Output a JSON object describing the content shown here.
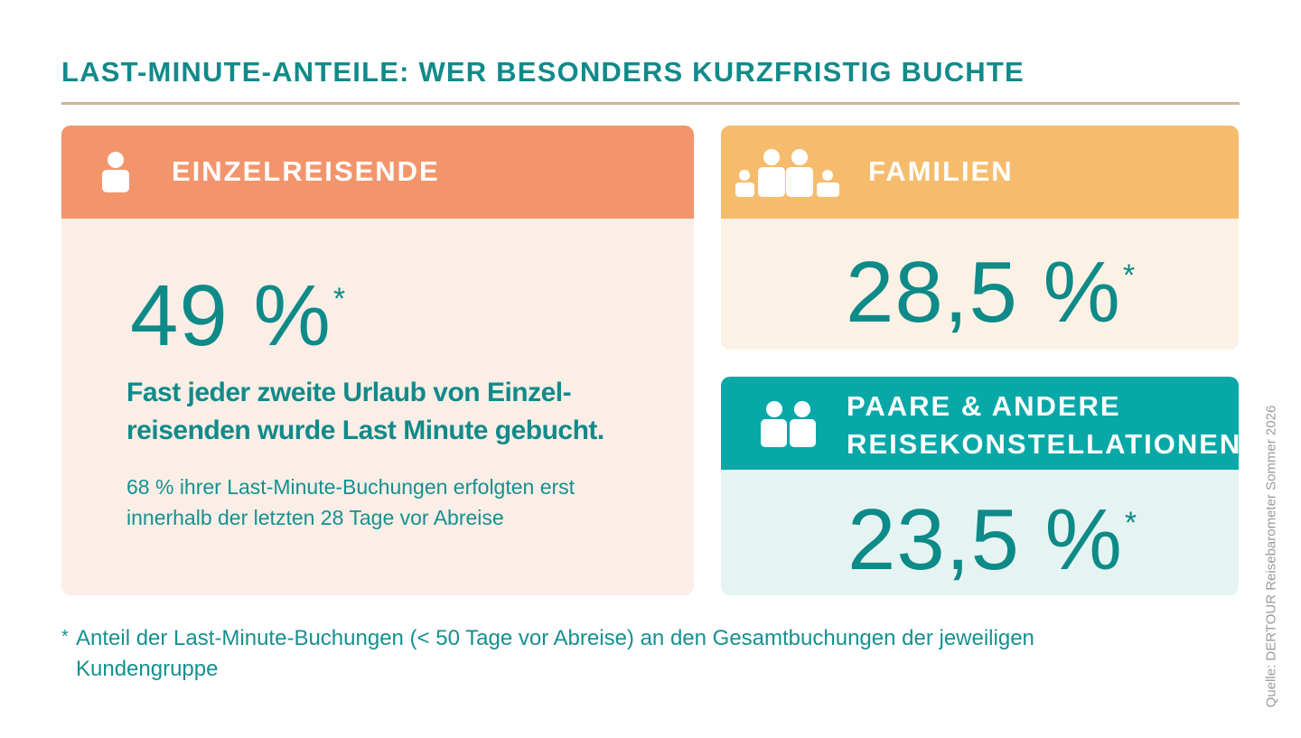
{
  "title": "LAST-MINUTE-ANTEILE: WER BESONDERS KURZFRISTIG BUCHTE",
  "cards": {
    "single": {
      "label": "EINZELREISENDE",
      "icon": "person-icon",
      "value": "49 %",
      "asterisk": "*",
      "headline": "Fast jeder zweite Urlaub von Einzel-reisenden wurde Last Minute gebucht.",
      "subtext": "68 % ihrer Last-Minute-Buchungen erfolgten erst innerhalb der letzten 28 Tage vor Abreise",
      "header_color": "#f2956c",
      "body_color": "#faeee6"
    },
    "family": {
      "label": "FAMILIEN",
      "icon": "family-icon",
      "value": "28,5 %",
      "asterisk": "*",
      "header_color": "#f6bc6e",
      "body_color": "#fcf1e5"
    },
    "couples": {
      "label": "PAARE & ANDERE REISEKONSTELLATIONEN",
      "icon": "couple-icon",
      "value": "23,5 %",
      "asterisk": "*",
      "header_color": "#07a8a7",
      "body_color": "#e5f4f3"
    }
  },
  "footnote": {
    "marker": "*",
    "text": "Anteil der Last-Minute-Buchungen (< 50 Tage vor Abreise) an den Gesamtbuchungen der jeweiligen Kundengruppe"
  },
  "source": "Quelle: DERTOUR Reisebarometer Sommer 2026",
  "colors": {
    "accent": "#118a8a",
    "rule": "#c7b898"
  }
}
